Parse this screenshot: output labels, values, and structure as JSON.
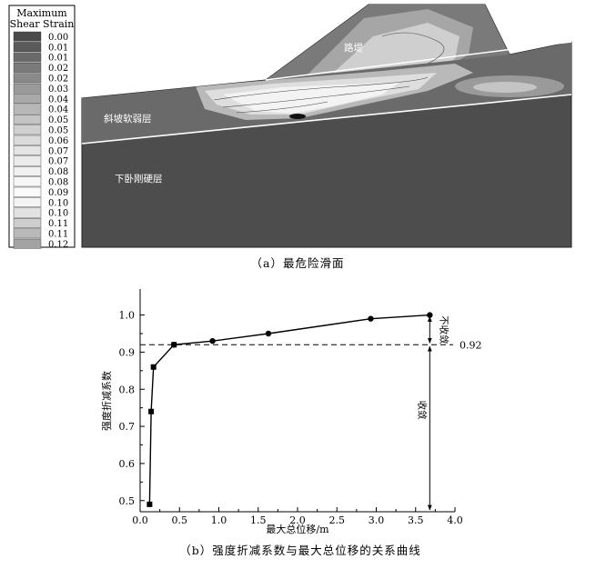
{
  "panel_a": {
    "caption": "（a）最危险滑面",
    "legend": {
      "title_line1": "Maximum",
      "title_line2": "Shear Strain",
      "levels": [
        "0.00",
        "0.01",
        "0.01",
        "0.02",
        "0.02",
        "0.03",
        "0.04",
        "0.04",
        "0.05",
        "0.05",
        "0.06",
        "0.07",
        "0.07",
        "0.08",
        "0.08",
        "0.09",
        "0.10",
        "0.10",
        "0.11",
        "0.11",
        "0.12"
      ],
      "colors": [
        "#4a4a4a",
        "#5a5a5a",
        "#6a6a6a",
        "#7a7a7a",
        "#8a8a8a",
        "#9a9a9a",
        "#a9a9a9",
        "#b7b7b7",
        "#c4c4c4",
        "#d0d0d0",
        "#dbdbdb",
        "#e4e4e4",
        "#ebebeb",
        "#f1f1f1",
        "#f6f6f6",
        "#fafafa",
        "#f4f4f4",
        "#e2e2e2",
        "#cecece",
        "#b9b9b9",
        "#a3a3a3"
      ]
    },
    "labels": {
      "embankment": "路堤",
      "weak_layer": "斜坡软弱层",
      "bedrock": "下卧刚硬层"
    }
  },
  "panel_b": {
    "caption": "（b）强度折减系数与最大总位移的关系曲线",
    "reference_value": "0.92",
    "not_converged_label": "不收敛",
    "converged_label": "收敛"
  },
  "chart_data": {
    "type": "line",
    "xlabel": "最大总位移/m",
    "ylabel": "强度折减系数",
    "xlim": [
      0.0,
      4.0
    ],
    "ylim": [
      0.47,
      1.07
    ],
    "xticks": [
      0.0,
      0.5,
      1.0,
      1.5,
      2.0,
      2.5,
      3.0,
      3.5,
      4.0
    ],
    "yticks": [
      0.5,
      0.6,
      0.7,
      0.8,
      0.9,
      1.0
    ],
    "series": [
      {
        "marker": "square",
        "x": [
          0.12,
          0.14,
          0.17,
          0.43
        ],
        "y": [
          0.49,
          0.74,
          0.86,
          0.92
        ]
      },
      {
        "marker": "circle",
        "x": [
          0.43,
          0.92,
          1.63,
          2.93,
          3.68
        ],
        "y": [
          0.92,
          0.93,
          0.95,
          0.99,
          1.0
        ]
      }
    ],
    "reference_line_y": 0.92,
    "grid": false
  }
}
